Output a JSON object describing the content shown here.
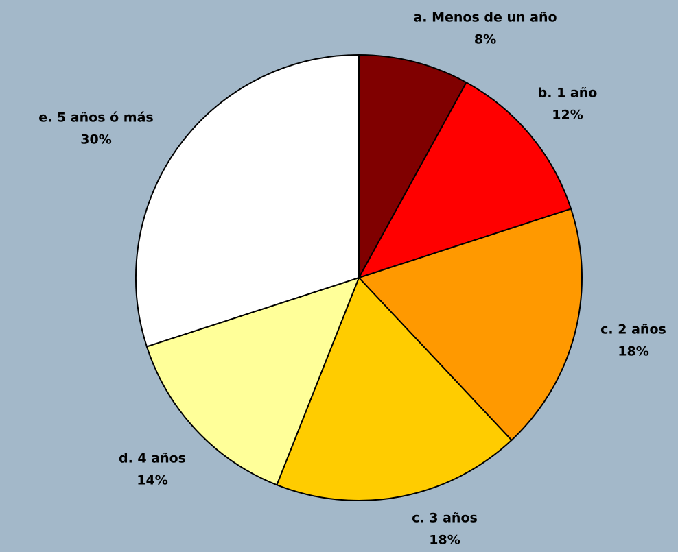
{
  "chart_data": {
    "type": "pie",
    "categories": [
      "a. Menos de un año",
      "b. 1 año",
      "c. 2 años",
      "c. 3 años",
      "d. 4 años",
      "e. 5 años ó más"
    ],
    "values": [
      8,
      12,
      18,
      18,
      14,
      30
    ],
    "value_labels": [
      "8%",
      "12%",
      "18%",
      "18%",
      "14%",
      "30%"
    ],
    "colors": [
      "#800000",
      "#ff0000",
      "#ff9900",
      "#ffcc00",
      "#ffff99",
      "#ffffff"
    ]
  }
}
